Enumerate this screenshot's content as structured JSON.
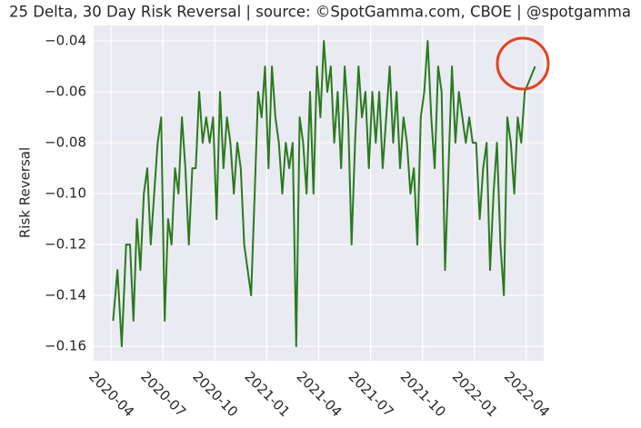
{
  "chart_data": {
    "type": "line",
    "title": "25 Delta, 30 Day Risk Reversal | source: ©SpotGamma.com, CBOE | @spotgamma",
    "ylabel": "Risk Reversal",
    "color": "#2a7a1e",
    "grid": true,
    "ylim": [
      -0.1657,
      -0.0339
    ],
    "yticks": [
      {
        "value": -0.16,
        "label": "−0.16"
      },
      {
        "value": -0.14,
        "label": "−0.14"
      },
      {
        "value": -0.12,
        "label": "−0.12"
      },
      {
        "value": -0.1,
        "label": "−0.10"
      },
      {
        "value": -0.08,
        "label": "−0.08"
      },
      {
        "value": -0.06,
        "label": "−0.06"
      },
      {
        "value": -0.04,
        "label": "−0.04"
      }
    ],
    "xlim": [
      "2020-03",
      "2022-05"
    ],
    "xticks": [
      "2020-04",
      "2020-07",
      "2020-10",
      "2021-01",
      "2021-04",
      "2021-07",
      "2021-10",
      "2022-01",
      "2022-04"
    ],
    "x": [
      "2020-04",
      "2020-04",
      "2020-04",
      "2020-04",
      "2020-05",
      "2020-05",
      "2020-05",
      "2020-05",
      "2020-05",
      "2020-06",
      "2020-06",
      "2020-06",
      "2020-06",
      "2020-06",
      "2020-07",
      "2020-07",
      "2020-07",
      "2020-07",
      "2020-07",
      "2020-08",
      "2020-08",
      "2020-08",
      "2020-08",
      "2020-08",
      "2020-09",
      "2020-09",
      "2020-09",
      "2020-09",
      "2020-09",
      "2020-10",
      "2020-10",
      "2020-10",
      "2020-10",
      "2020-10",
      "2020-11",
      "2020-11",
      "2020-11",
      "2020-11",
      "2020-11",
      "2020-12",
      "2020-12",
      "2020-12",
      "2020-12",
      "2020-12",
      "2021-01",
      "2021-01",
      "2021-01",
      "2021-01",
      "2021-01",
      "2021-02",
      "2021-02",
      "2021-02",
      "2021-02",
      "2021-02",
      "2021-03",
      "2021-03",
      "2021-03",
      "2021-03",
      "2021-03",
      "2021-04",
      "2021-04",
      "2021-04",
      "2021-04",
      "2021-04",
      "2021-05",
      "2021-05",
      "2021-05",
      "2021-05",
      "2021-05",
      "2021-06",
      "2021-06",
      "2021-06",
      "2021-06",
      "2021-06",
      "2021-07",
      "2021-07",
      "2021-07",
      "2021-07",
      "2021-07",
      "2021-08",
      "2021-08",
      "2021-08",
      "2021-08",
      "2021-08",
      "2021-09",
      "2021-09",
      "2021-09",
      "2021-09",
      "2021-09",
      "2021-10",
      "2021-10",
      "2021-10",
      "2021-10",
      "2021-10",
      "2021-11",
      "2021-11",
      "2021-11",
      "2021-11",
      "2021-11",
      "2021-12",
      "2021-12",
      "2021-12",
      "2021-12",
      "2021-12",
      "2022-01",
      "2022-01",
      "2022-01",
      "2022-01",
      "2022-01",
      "2022-02",
      "2022-02",
      "2022-02",
      "2022-02",
      "2022-02",
      "2022-03",
      "2022-03",
      "2022-03",
      "2022-03",
      "2022-03",
      "2022-04"
    ],
    "values": [
      -0.15,
      -0.13,
      -0.16,
      -0.12,
      -0.12,
      -0.15,
      -0.11,
      -0.13,
      -0.1,
      -0.09,
      -0.12,
      -0.1,
      -0.08,
      -0.07,
      -0.15,
      -0.11,
      -0.12,
      -0.09,
      -0.1,
      -0.07,
      -0.09,
      -0.12,
      -0.09,
      -0.09,
      -0.06,
      -0.08,
      -0.07,
      -0.08,
      -0.07,
      -0.11,
      -0.06,
      -0.09,
      -0.07,
      -0.08,
      -0.1,
      -0.08,
      -0.09,
      -0.12,
      -0.13,
      -0.14,
      -0.1,
      -0.06,
      -0.07,
      -0.05,
      -0.09,
      -0.05,
      -0.07,
      -0.08,
      -0.1,
      -0.08,
      -0.09,
      -0.08,
      -0.16,
      -0.07,
      -0.08,
      -0.1,
      -0.06,
      -0.1,
      -0.05,
      -0.07,
      -0.04,
      -0.06,
      -0.05,
      -0.08,
      -0.06,
      -0.09,
      -0.05,
      -0.07,
      -0.12,
      -0.08,
      -0.05,
      -0.07,
      -0.06,
      -0.09,
      -0.06,
      -0.08,
      -0.06,
      -0.09,
      -0.07,
      -0.05,
      -0.08,
      -0.06,
      -0.09,
      -0.07,
      -0.08,
      -0.1,
      -0.09,
      -0.12,
      -0.07,
      -0.06,
      -0.04,
      -0.07,
      -0.09,
      -0.05,
      -0.06,
      -0.13,
      -0.09,
      -0.05,
      -0.08,
      -0.06,
      -0.07,
      -0.08,
      -0.07,
      -0.08,
      -0.08,
      -0.11,
      -0.09,
      -0.08,
      -0.13,
      -0.1,
      -0.08,
      -0.12,
      -0.14,
      -0.07,
      -0.08,
      -0.1,
      -0.07,
      -0.08,
      -0.06,
      -0.05
    ]
  }
}
